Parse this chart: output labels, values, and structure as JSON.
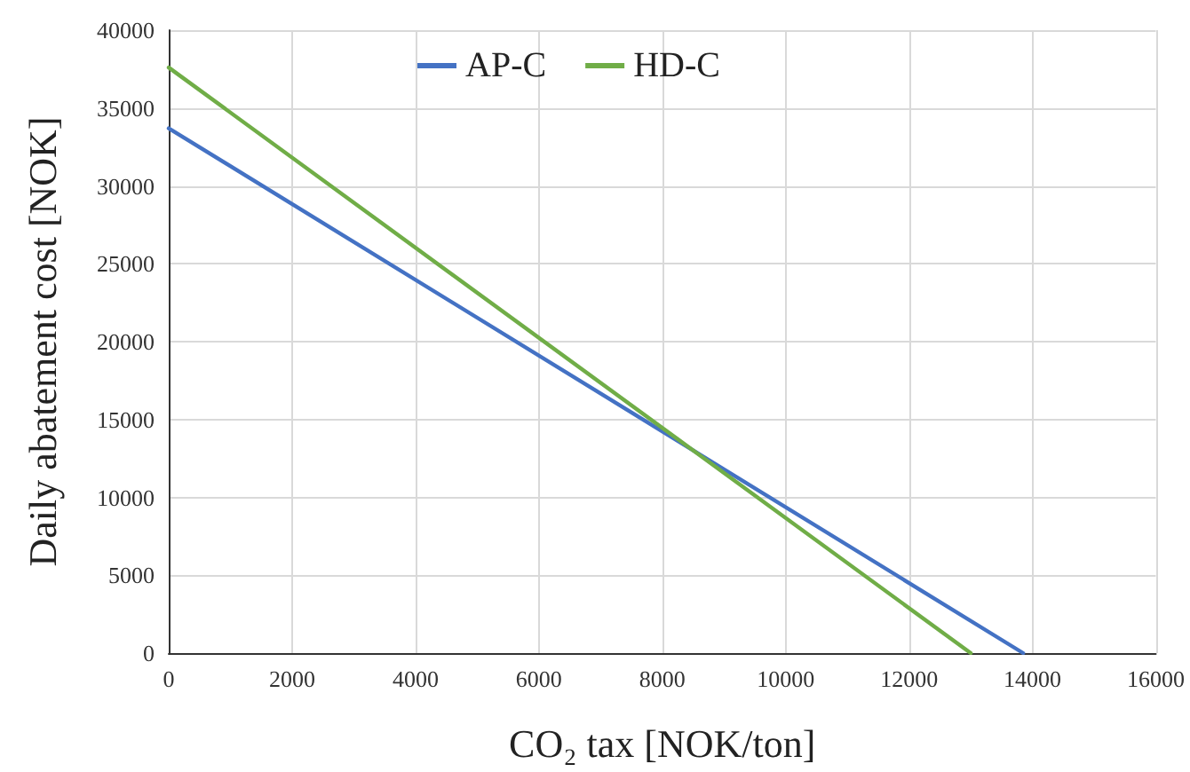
{
  "chart_data": {
    "type": "line",
    "xlabel": "CO₂ tax [NOK/ton]",
    "ylabel": "Daily abatement cost [NOK]",
    "series": [
      {
        "name": "AP-C",
        "color": "#4472c4",
        "x": [
          0,
          13850
        ],
        "values": [
          33700,
          0
        ]
      },
      {
        "name": "HD-C",
        "color": "#70ad47",
        "x": [
          0,
          13000
        ],
        "values": [
          37600,
          0
        ]
      }
    ],
    "xlim": [
      0,
      16000
    ],
    "xticks": [
      0,
      2000,
      4000,
      6000,
      8000,
      10000,
      12000,
      14000,
      16000
    ],
    "ylim": [
      0,
      40000
    ],
    "yticks": [
      0,
      5000,
      10000,
      15000,
      20000,
      25000,
      30000,
      35000,
      40000
    ],
    "grid": true,
    "legend": "top",
    "marker": "none",
    "line_style": "solid"
  }
}
